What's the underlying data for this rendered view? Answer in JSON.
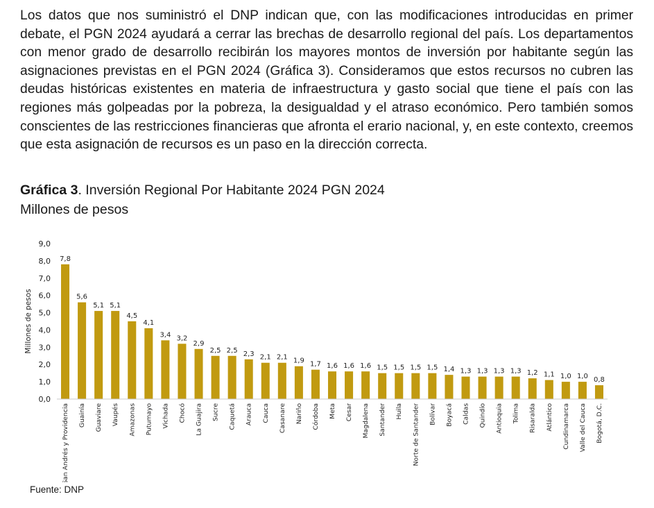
{
  "paragraph": "Los datos que nos suministró el DNP indican que, con las modificaciones introducidas en primer debate, el PGN 2024 ayudará a cerrar las brechas de desarrollo regional del país. Los departamentos con menor grado de desarrollo recibirán los mayores montos de inversión por habitante según las asignaciones previstas en el PGN 2024 (Gráfica 3). Consideramos que estos recursos no cubren las deudas históricas existentes en materia de infraestructura y gasto social que tiene el país con las regiones más golpeadas por la pobreza, la desigualdad y el atraso económico. Pero también somos conscientes de las restricciones financieras que afronta el erario nacional, y, en este contexto, creemos que esta asignación de recursos es un paso en la dirección correcta.",
  "figure": {
    "label": "Gráfica 3",
    "title_rest": ". Inversión Regional Por Habitante 2024 PGN 2024",
    "subtitle": "Millones de pesos",
    "source": "Fuente: DNP"
  },
  "chart_data": {
    "type": "bar",
    "ylabel": "Millones de pesos",
    "xlabel": "",
    "ylim": [
      0,
      9
    ],
    "yticks": [
      "0,0",
      "1,0",
      "2,0",
      "3,0",
      "4,0",
      "5,0",
      "6,0",
      "7,0",
      "8,0",
      "9,0"
    ],
    "grid": false,
    "bar_color": "#c19a10",
    "categories": [
      "San Andrés y Providencia",
      "Guainía",
      "Guaviare",
      "Vaupés",
      "Amazonas",
      "Putumayo",
      "Vichada",
      "Chocó",
      "La Guajira",
      "Sucre",
      "Caquetá",
      "Arauca",
      "Cauca",
      "Casanare",
      "Nariño",
      "Córdoba",
      "Meta",
      "Cesar",
      "Magdalena",
      "Santander",
      "Huila",
      "Norte de Santander",
      "Bolívar",
      "Boyacá",
      "Caldas",
      "Quindío",
      "Antioquia",
      "Tolima",
      "Risaralda",
      "Atlántico",
      "Cundinamarca",
      "Valle del Cauca",
      "Bogotá, D.C."
    ],
    "values": [
      7.8,
      5.6,
      5.1,
      5.1,
      4.5,
      4.1,
      3.4,
      3.2,
      2.9,
      2.5,
      2.5,
      2.3,
      2.1,
      2.1,
      1.9,
      1.7,
      1.6,
      1.6,
      1.6,
      1.5,
      1.5,
      1.5,
      1.5,
      1.4,
      1.3,
      1.3,
      1.3,
      1.3,
      1.2,
      1.1,
      1.0,
      1.0,
      0.8
    ],
    "data_labels": [
      "7,8",
      "5,6",
      "5,1",
      "5,1",
      "4,5",
      "4,1",
      "3,4",
      "3,2",
      "2,9",
      "2,5",
      "2,5",
      "2,3",
      "2,1",
      "2,1",
      "1,9",
      "1,7",
      "1,6",
      "1,6",
      "1,6",
      "1,5",
      "1,5",
      "1,5",
      "1,5",
      "1,4",
      "1,3",
      "1,3",
      "1,3",
      "1,3",
      "1,2",
      "1,1",
      "1,0",
      "1,0",
      "0,8"
    ]
  }
}
